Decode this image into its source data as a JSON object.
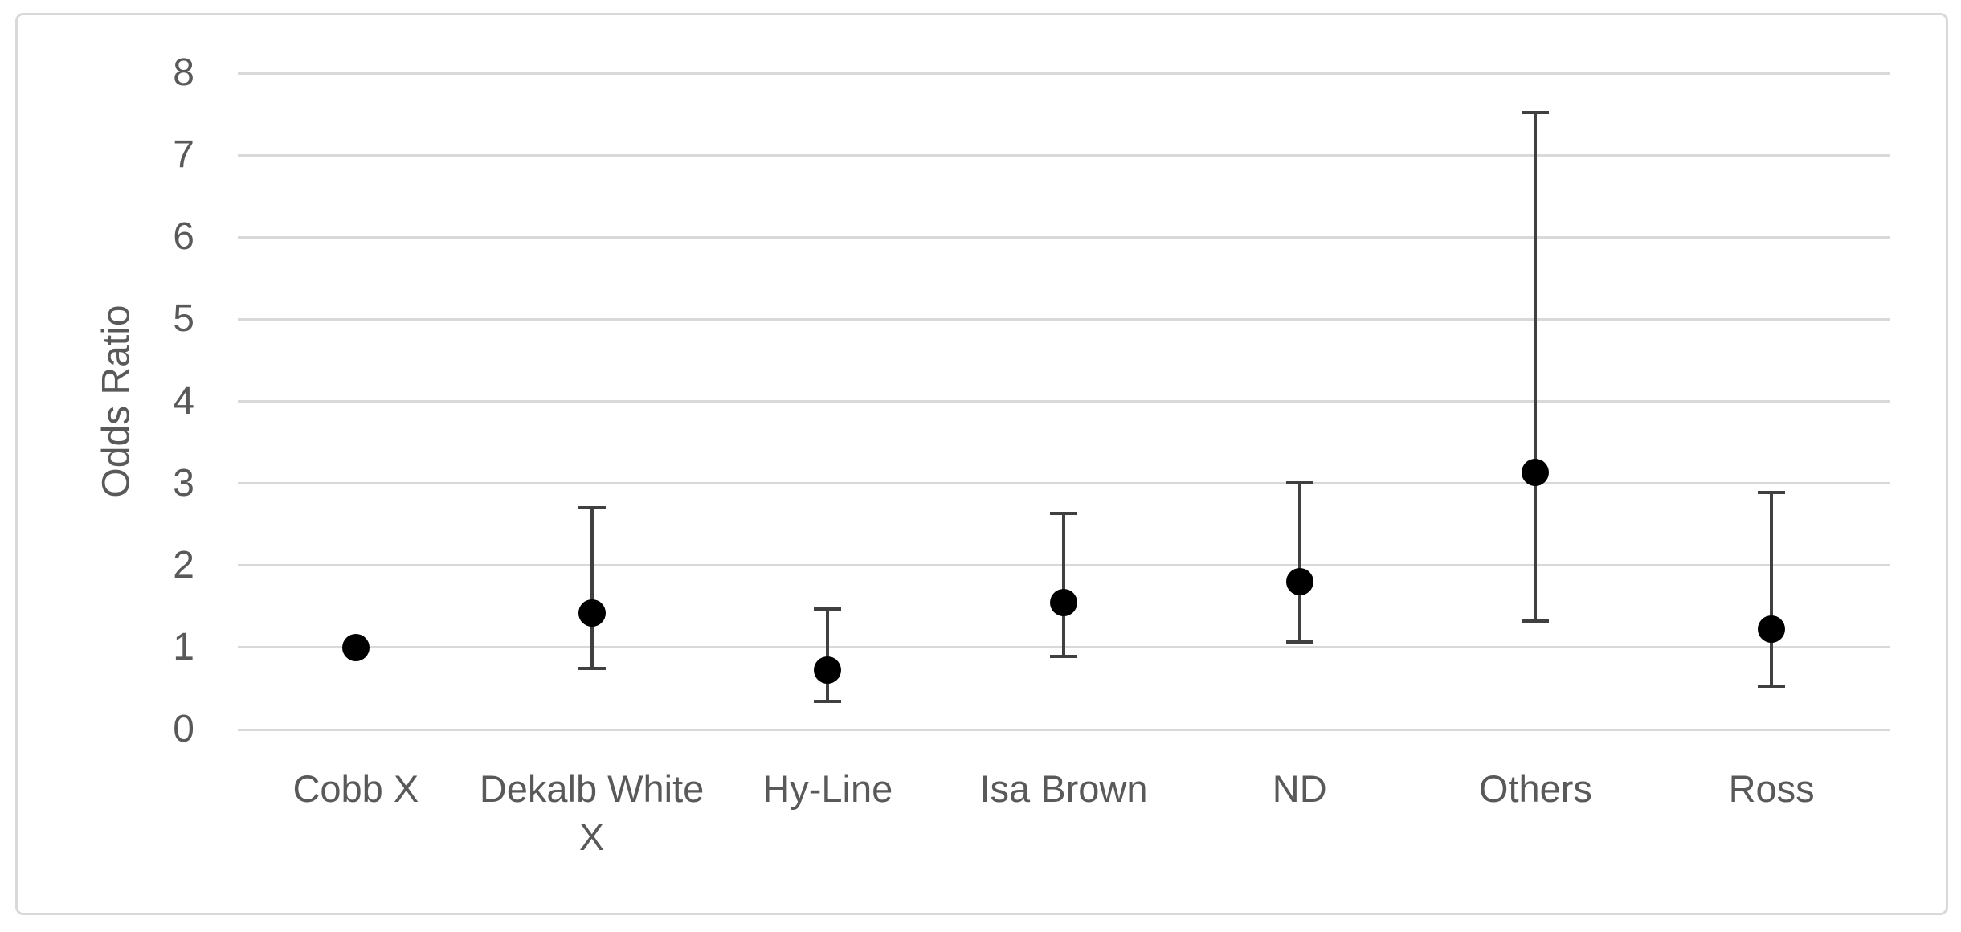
{
  "chart_data": {
    "type": "scatter",
    "title": "",
    "xlabel": "",
    "ylabel": "Odds Ratio",
    "ylim": [
      0,
      8
    ],
    "y_ticks": [
      0,
      1,
      2,
      3,
      4,
      5,
      6,
      7,
      8
    ],
    "grid": "horizontal",
    "legend": "none",
    "categories": [
      "Cobb X",
      "Dekalb White X",
      "Hy-Line",
      "Isa Brown",
      "ND",
      "Others",
      "Ross"
    ],
    "points": [
      {
        "category": "Cobb X",
        "odds_ratio": 1.0,
        "ci_low": null,
        "ci_high": null
      },
      {
        "category": "Dekalb White X",
        "odds_ratio": 1.42,
        "ci_low": 0.74,
        "ci_high": 2.7
      },
      {
        "category": "Hy-Line",
        "odds_ratio": 0.72,
        "ci_low": 0.34,
        "ci_high": 1.47
      },
      {
        "category": "Isa Brown",
        "odds_ratio": 1.55,
        "ci_low": 0.89,
        "ci_high": 2.63
      },
      {
        "category": "ND",
        "odds_ratio": 1.8,
        "ci_low": 1.07,
        "ci_high": 3.01
      },
      {
        "category": "Others",
        "odds_ratio": 3.13,
        "ci_low": 1.32,
        "ci_high": 7.52
      },
      {
        "category": "Ross",
        "odds_ratio": 1.22,
        "ci_low": 0.53,
        "ci_high": 2.89
      }
    ],
    "colors": {
      "marker": "#000000",
      "error_bar": "#404040",
      "gridline": "#d9d9d9",
      "axis_text": "#595959",
      "border": "#d9d9d9"
    }
  }
}
